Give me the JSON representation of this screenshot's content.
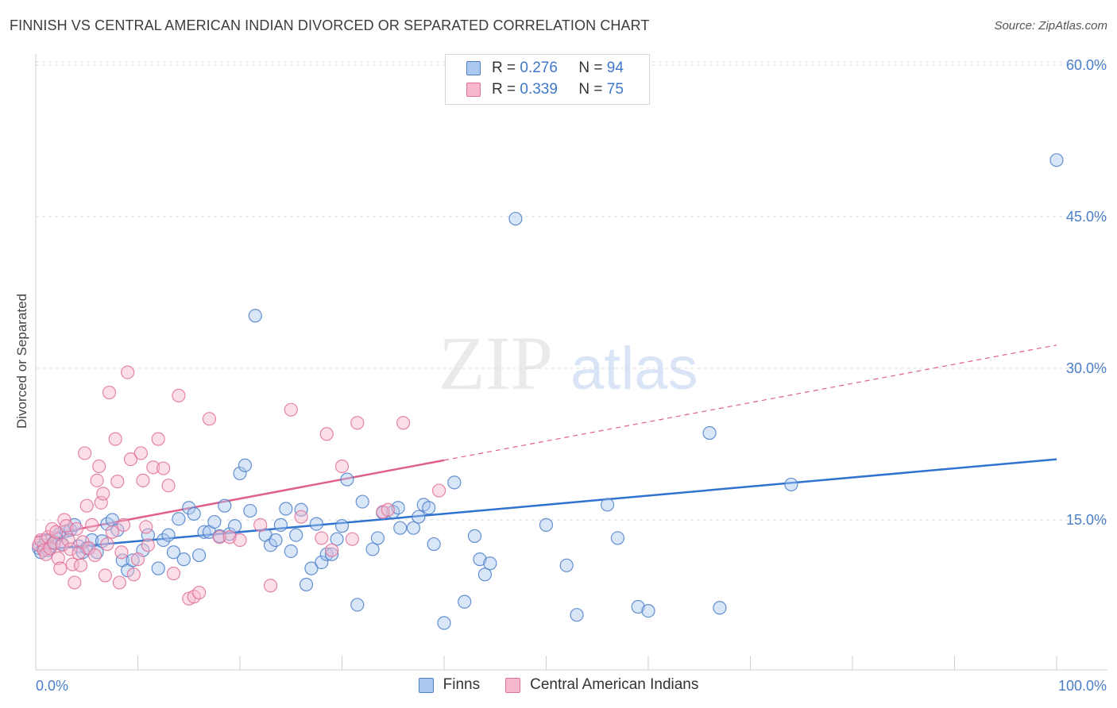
{
  "header": {
    "title": "FINNISH VS CENTRAL AMERICAN INDIAN DIVORCED OR SEPARATED CORRELATION CHART",
    "source": "Source: ZipAtlas.com"
  },
  "watermark": {
    "zip": "ZIP",
    "atlas": "atlas"
  },
  "legend": {
    "rows": [
      {
        "r_label": "R =",
        "r_value": "0.276",
        "n_label": "N =",
        "n_value": "94"
      },
      {
        "r_label": "R =",
        "r_value": "0.339",
        "n_label": "N =",
        "n_value": "75"
      }
    ]
  },
  "bottom_legend": {
    "finns": "Finns",
    "cai": "Central American Indians"
  },
  "colors": {
    "finns_fill": "#aac8f0",
    "finns_stroke": "#4a7ec9",
    "finns_line": "#2f72d0",
    "cai_fill": "#f7b8cc",
    "cai_stroke": "#e07098",
    "cai_line": "#e0608c",
    "grid": "#dcdcdc",
    "tick_text": "#4a7ec9"
  },
  "chart_data": {
    "type": "scatter",
    "title": "FINNISH VS CENTRAL AMERICAN INDIAN DIVORCED OR SEPARATED CORRELATION CHART",
    "xlabel": "",
    "ylabel": "Divorced or Separated",
    "xlim": [
      0,
      100
    ],
    "ylim": [
      0,
      62
    ],
    "x_tick_labels": [
      "0.0%",
      "100.0%"
    ],
    "y_ticks": [
      15,
      30,
      45,
      60
    ],
    "y_tick_labels": [
      "15.0%",
      "30.0%",
      "45.0%",
      "60.0%"
    ],
    "grid": true,
    "legend_position": "top-center",
    "series": [
      {
        "name": "Finns",
        "r": 0.276,
        "n": 94,
        "trend": {
          "x0": 0,
          "y0": 12.0,
          "x1": 100,
          "y1": 21.0,
          "dashed_from": null
        },
        "points": [
          [
            0.3,
            12.2
          ],
          [
            0.5,
            11.8
          ],
          [
            0.8,
            12.5
          ],
          [
            1.0,
            13.0
          ],
          [
            1.2,
            12.0
          ],
          [
            1.5,
            12.4
          ],
          [
            1.8,
            12.8
          ],
          [
            2.0,
            13.2
          ],
          [
            2.3,
            13.6
          ],
          [
            2.6,
            12.6
          ],
          [
            3.0,
            13.9
          ],
          [
            3.4,
            14.0
          ],
          [
            3.8,
            14.5
          ],
          [
            4.2,
            12.4
          ],
          [
            4.6,
            11.8
          ],
          [
            5.0,
            12.2
          ],
          [
            5.5,
            13.0
          ],
          [
            6.0,
            11.8
          ],
          [
            6.5,
            12.9
          ],
          [
            7.0,
            14.6
          ],
          [
            7.5,
            15.0
          ],
          [
            8.0,
            14.0
          ],
          [
            8.5,
            11.0
          ],
          [
            9.0,
            10.0
          ],
          [
            9.5,
            11.0
          ],
          [
            10.5,
            12.0
          ],
          [
            11.0,
            13.5
          ],
          [
            12.0,
            10.2
          ],
          [
            12.5,
            13.0
          ],
          [
            13.0,
            13.5
          ],
          [
            13.5,
            11.8
          ],
          [
            14.0,
            15.1
          ],
          [
            14.5,
            11.1
          ],
          [
            15.0,
            16.2
          ],
          [
            15.5,
            15.6
          ],
          [
            16.0,
            11.5
          ],
          [
            16.5,
            13.8
          ],
          [
            17.0,
            13.8
          ],
          [
            17.5,
            14.8
          ],
          [
            18.0,
            13.4
          ],
          [
            18.5,
            16.4
          ],
          [
            19.0,
            13.6
          ],
          [
            19.5,
            14.4
          ],
          [
            20.0,
            19.6
          ],
          [
            20.5,
            20.4
          ],
          [
            21.0,
            15.9
          ],
          [
            21.5,
            35.2
          ],
          [
            22.5,
            13.5
          ],
          [
            23.0,
            12.5
          ],
          [
            23.5,
            13.0
          ],
          [
            24.0,
            14.5
          ],
          [
            24.5,
            16.1
          ],
          [
            25.0,
            11.9
          ],
          [
            25.5,
            13.5
          ],
          [
            26.0,
            16.0
          ],
          [
            26.5,
            8.6
          ],
          [
            27.0,
            10.2
          ],
          [
            27.5,
            14.6
          ],
          [
            28.0,
            10.8
          ],
          [
            28.5,
            11.6
          ],
          [
            29.0,
            11.6
          ],
          [
            29.5,
            13.1
          ],
          [
            30.0,
            14.4
          ],
          [
            30.5,
            19.0
          ],
          [
            31.5,
            6.6
          ],
          [
            32.0,
            16.8
          ],
          [
            33.0,
            12.1
          ],
          [
            33.5,
            13.2
          ],
          [
            34.0,
            15.7
          ],
          [
            35.0,
            15.8
          ],
          [
            35.5,
            16.2
          ],
          [
            35.7,
            14.2
          ],
          [
            37.0,
            14.2
          ],
          [
            37.5,
            15.3
          ],
          [
            38.0,
            16.5
          ],
          [
            38.5,
            16.2
          ],
          [
            39.0,
            12.6
          ],
          [
            40.0,
            4.8
          ],
          [
            41.0,
            18.7
          ],
          [
            42.0,
            6.9
          ],
          [
            43.0,
            13.4
          ],
          [
            43.5,
            11.1
          ],
          [
            44.0,
            9.6
          ],
          [
            44.5,
            10.7
          ],
          [
            47.0,
            44.8
          ],
          [
            50.0,
            14.5
          ],
          [
            52.0,
            10.5
          ],
          [
            53.0,
            5.6
          ],
          [
            56.0,
            16.5
          ],
          [
            57.0,
            13.2
          ],
          [
            59.0,
            6.4
          ],
          [
            60.0,
            6.0
          ],
          [
            66.0,
            23.6
          ],
          [
            67.0,
            6.3
          ],
          [
            74.0,
            18.5
          ],
          [
            100.0,
            50.6
          ]
        ]
      },
      {
        "name": "Central American Indians",
        "r": 0.339,
        "n": 75,
        "trend": {
          "x0": 0,
          "y0": 13.3,
          "x1": 100,
          "y1": 32.3,
          "dashed_from": 40
        },
        "points": [
          [
            0.3,
            12.5
          ],
          [
            0.5,
            13.0
          ],
          [
            0.8,
            12.0
          ],
          [
            1.0,
            11.6
          ],
          [
            1.2,
            13.3
          ],
          [
            1.4,
            12.2
          ],
          [
            1.6,
            14.1
          ],
          [
            1.8,
            12.7
          ],
          [
            2.0,
            13.8
          ],
          [
            2.2,
            11.2
          ],
          [
            2.4,
            10.2
          ],
          [
            2.6,
            12.5
          ],
          [
            2.8,
            15.0
          ],
          [
            3.0,
            14.4
          ],
          [
            3.2,
            13.0
          ],
          [
            3.4,
            12.1
          ],
          [
            3.6,
            10.6
          ],
          [
            3.8,
            8.8
          ],
          [
            4.0,
            14.1
          ],
          [
            4.2,
            11.7
          ],
          [
            4.4,
            10.5
          ],
          [
            4.6,
            12.8
          ],
          [
            4.8,
            21.6
          ],
          [
            5.0,
            16.4
          ],
          [
            5.2,
            12.2
          ],
          [
            5.5,
            14.5
          ],
          [
            5.8,
            11.5
          ],
          [
            6.0,
            18.9
          ],
          [
            6.2,
            20.3
          ],
          [
            6.4,
            16.7
          ],
          [
            6.6,
            17.6
          ],
          [
            6.8,
            9.5
          ],
          [
            7.0,
            12.6
          ],
          [
            7.2,
            27.6
          ],
          [
            7.5,
            13.8
          ],
          [
            7.8,
            23.0
          ],
          [
            8.0,
            18.8
          ],
          [
            8.2,
            8.8
          ],
          [
            8.4,
            11.8
          ],
          [
            8.6,
            14.5
          ],
          [
            9.0,
            29.6
          ],
          [
            9.3,
            21.0
          ],
          [
            9.6,
            9.6
          ],
          [
            10.0,
            11.1
          ],
          [
            10.3,
            21.6
          ],
          [
            10.5,
            18.9
          ],
          [
            10.8,
            14.3
          ],
          [
            11.0,
            12.5
          ],
          [
            11.5,
            20.2
          ],
          [
            12.0,
            23.0
          ],
          [
            12.5,
            20.1
          ],
          [
            13.0,
            18.4
          ],
          [
            13.5,
            9.7
          ],
          [
            14.0,
            27.3
          ],
          [
            15.0,
            7.2
          ],
          [
            15.5,
            7.4
          ],
          [
            16.0,
            7.8
          ],
          [
            17.0,
            25.0
          ],
          [
            18.0,
            13.3
          ],
          [
            19.0,
            13.3
          ],
          [
            20.0,
            13.0
          ],
          [
            22.0,
            14.5
          ],
          [
            23.0,
            8.5
          ],
          [
            25.0,
            25.9
          ],
          [
            26.0,
            15.3
          ],
          [
            28.0,
            13.2
          ],
          [
            28.5,
            23.5
          ],
          [
            29.0,
            12.0
          ],
          [
            30.0,
            20.3
          ],
          [
            31.0,
            13.1
          ],
          [
            31.5,
            24.6
          ],
          [
            34.0,
            15.8
          ],
          [
            34.5,
            16.0
          ],
          [
            36.0,
            24.6
          ],
          [
            39.5,
            17.9
          ]
        ]
      }
    ]
  }
}
